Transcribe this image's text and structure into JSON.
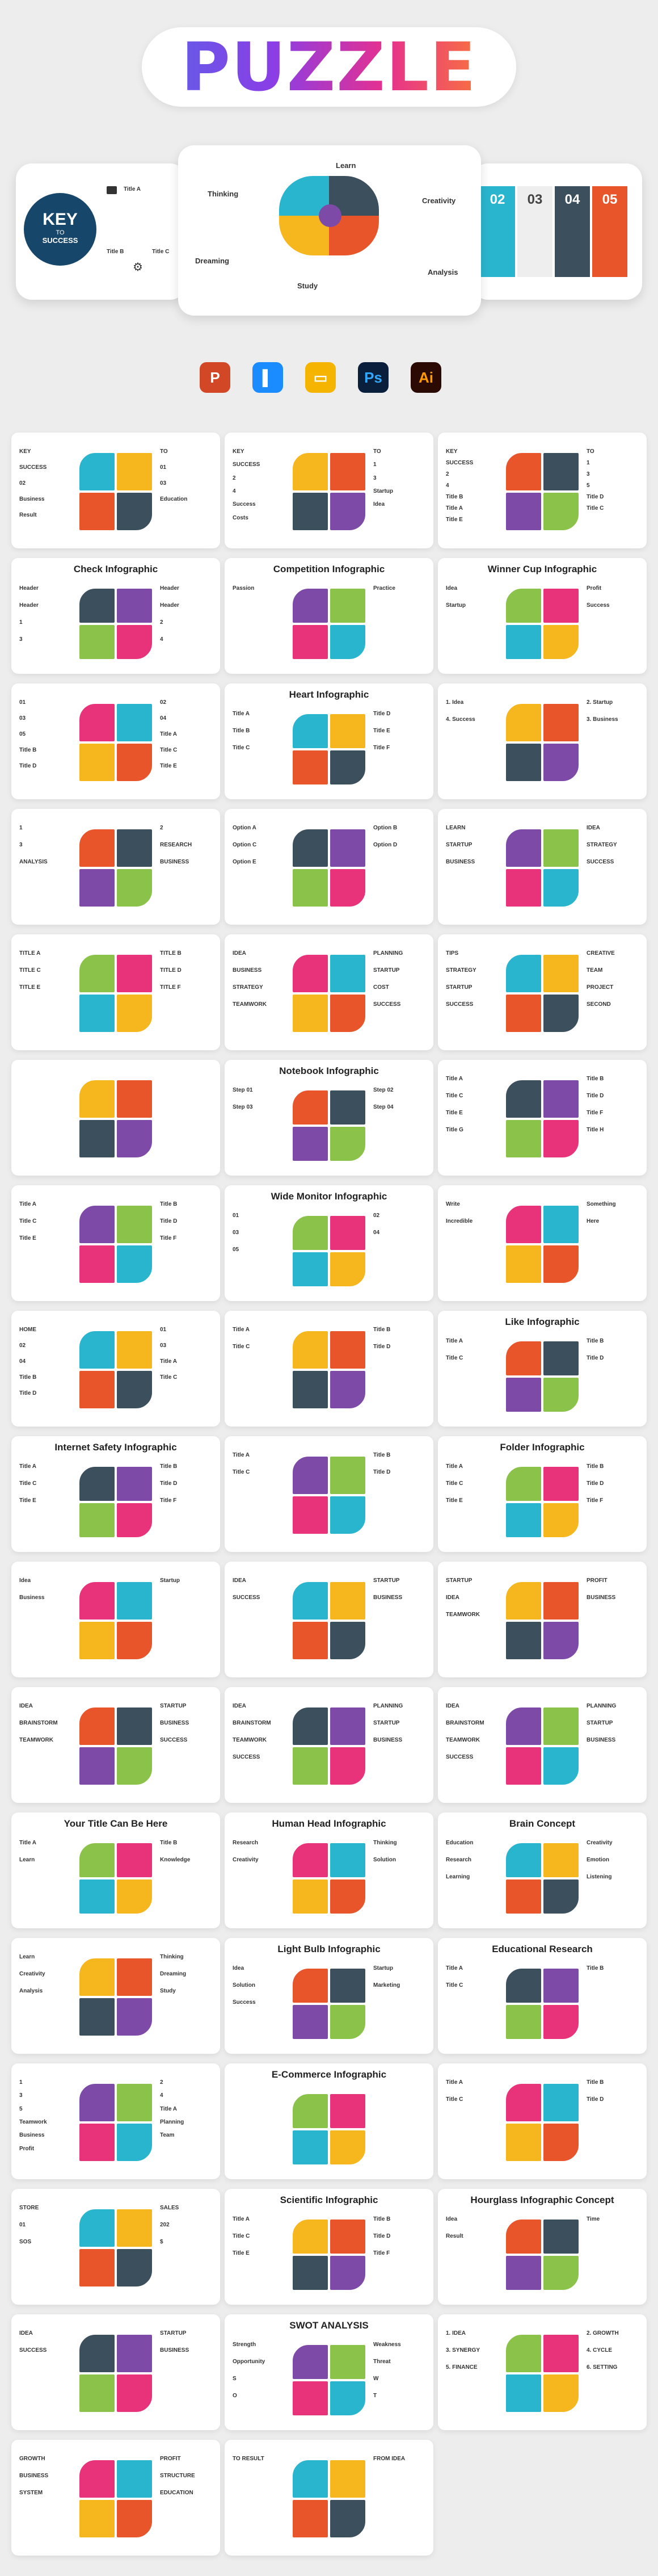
{
  "header": {
    "title": "PUZZLE"
  },
  "hero": {
    "left": {
      "key": "KEY",
      "to": "TO",
      "success": "SUCCESS",
      "labels": [
        "Title A",
        "Title B",
        "Title C"
      ]
    },
    "center": {
      "labels": [
        "Learn",
        "Thinking",
        "Creativity",
        "Dreaming",
        "Analysis",
        "Study"
      ]
    },
    "right": {
      "numbers": [
        "02",
        "03",
        "04",
        "05"
      ]
    }
  },
  "apps": [
    {
      "name": "powerpoint-icon",
      "letter": "P",
      "color": "#d24726"
    },
    {
      "name": "keynote-icon",
      "letter": "▌",
      "color": "#1a8cff"
    },
    {
      "name": "google-slides-icon",
      "letter": "▭",
      "color": "#f4b400"
    },
    {
      "name": "photoshop-icon",
      "letter": "Ps",
      "color": "#0a1f3c"
    },
    {
      "name": "illustrator-icon",
      "letter": "Ai",
      "color": "#2b0a03"
    }
  ],
  "cards": [
    {
      "title": "",
      "labels": [
        "KEY",
        "TO",
        "SUCCESS",
        "01",
        "02",
        "03",
        "Business",
        "Education",
        "Result"
      ]
    },
    {
      "title": "",
      "labels": [
        "KEY",
        "TO",
        "SUCCESS",
        "1",
        "2",
        "3",
        "4",
        "Startup",
        "Success",
        "Idea",
        "Costs"
      ]
    },
    {
      "title": "",
      "labels": [
        "KEY",
        "TO",
        "SUCCESS",
        "1",
        "2",
        "3",
        "4",
        "5",
        "Title B",
        "Title D",
        "Title A",
        "Title C",
        "Title E"
      ]
    },
    {
      "title": "Check Infographic",
      "labels": [
        "Header",
        "Header",
        "Header",
        "Header",
        "1",
        "2",
        "3",
        "4"
      ]
    },
    {
      "title": "Competition Infographic",
      "labels": [
        "Passion",
        "Practice"
      ]
    },
    {
      "title": "Winner Cup Infographic",
      "labels": [
        "Idea",
        "Profit",
        "Startup",
        "Success"
      ]
    },
    {
      "title": "",
      "labels": [
        "01",
        "02",
        "03",
        "04",
        "05",
        "Title A",
        "Title B",
        "Title C",
        "Title D",
        "Title E"
      ]
    },
    {
      "title": "Heart Infographic",
      "labels": [
        "Title A",
        "Title D",
        "Title B",
        "Title E",
        "Title C",
        "Title F"
      ]
    },
    {
      "title": "",
      "labels": [
        "1. Idea",
        "2. Startup",
        "4. Success",
        "3. Business"
      ]
    },
    {
      "title": "",
      "labels": [
        "1",
        "2",
        "3",
        "RESEARCH",
        "ANALYSIS",
        "BUSINESS"
      ]
    },
    {
      "title": "",
      "labels": [
        "Option A",
        "Option B",
        "Option C",
        "Option D",
        "Option E"
      ]
    },
    {
      "title": "",
      "labels": [
        "LEARN",
        "IDEA",
        "STARTUP",
        "STRATEGY",
        "BUSINESS",
        "SUCCESS"
      ]
    },
    {
      "title": "",
      "labels": [
        "TITLE A",
        "TITLE B",
        "TITLE C",
        "TITLE D",
        "TITLE E",
        "TITLE F"
      ]
    },
    {
      "title": "",
      "labels": [
        "IDEA",
        "PLANNING",
        "BUSINESS",
        "STARTUP",
        "STRATEGY",
        "COST",
        "TEAMWORK",
        "SUCCESS"
      ]
    },
    {
      "title": "",
      "labels": [
        "TIPS",
        "CREATIVE",
        "STRATEGY",
        "TEAM",
        "STARTUP",
        "PROJECT",
        "SUCCESS",
        "SECOND"
      ]
    },
    {
      "title": "",
      "labels": []
    },
    {
      "title": "Notebook Infographic",
      "labels": [
        "Step 01",
        "Step 02",
        "Step 03",
        "Step 04"
      ]
    },
    {
      "title": "",
      "labels": [
        "Title A",
        "Title B",
        "Title C",
        "Title D",
        "Title E",
        "Title F",
        "Title G",
        "Title H"
      ]
    },
    {
      "title": "",
      "labels": [
        "Title A",
        "Title B",
        "Title C",
        "Title D",
        "Title E",
        "Title F"
      ]
    },
    {
      "title": "Wide Monitor Infographic",
      "labels": [
        "01",
        "02",
        "03",
        "04",
        "05"
      ]
    },
    {
      "title": "",
      "labels": [
        "Write",
        "Something",
        "Incredible",
        "Here"
      ]
    },
    {
      "title": "",
      "labels": [
        "HOME",
        "01",
        "02",
        "03",
        "04",
        "Title A",
        "Title B",
        "Title C",
        "Title D"
      ]
    },
    {
      "title": "",
      "labels": [
        "Title A",
        "Title B",
        "Title C",
        "Title D"
      ]
    },
    {
      "title": "Like Infographic",
      "labels": [
        "Title A",
        "Title B",
        "Title C",
        "Title D"
      ]
    },
    {
      "title": "Internet Safety Infographic",
      "labels": [
        "Title A",
        "Title B",
        "Title C",
        "Title D",
        "Title E",
        "Title F"
      ]
    },
    {
      "title": "",
      "labels": [
        "Title A",
        "Title B",
        "Title C",
        "Title D"
      ]
    },
    {
      "title": "Folder Infographic",
      "labels": [
        "Title A",
        "Title B",
        "Title C",
        "Title D",
        "Title E",
        "Title F"
      ]
    },
    {
      "title": "",
      "labels": [
        "Idea",
        "Startup",
        "Business"
      ]
    },
    {
      "title": "",
      "labels": [
        "IDEA",
        "STARTUP",
        "SUCCESS",
        "BUSINESS"
      ]
    },
    {
      "title": "",
      "labels": [
        "STARTUP",
        "PROFIT",
        "IDEA",
        "BUSINESS",
        "TEAMWORK"
      ]
    },
    {
      "title": "",
      "labels": [
        "IDEA",
        "STARTUP",
        "BRAINSTORM",
        "BUSINESS",
        "TEAMWORK",
        "SUCCESS"
      ]
    },
    {
      "title": "",
      "labels": [
        "IDEA",
        "PLANNING",
        "BRAINSTORM",
        "STARTUP",
        "TEAMWORK",
        "BUSINESS",
        "SUCCESS"
      ]
    },
    {
      "title": "",
      "labels": [
        "IDEA",
        "PLANNING",
        "BRAINSTORM",
        "STARTUP",
        "TEAMWORK",
        "BUSINESS",
        "SUCCESS"
      ]
    },
    {
      "title": "Your Title Can Be Here",
      "labels": [
        "Title A",
        "Title B",
        "Learn",
        "Knowledge"
      ]
    },
    {
      "title": "Human Head Infographic",
      "labels": [
        "Research",
        "Thinking",
        "Creativity",
        "Solution"
      ]
    },
    {
      "title": "Brain Concept",
      "labels": [
        "Education",
        "Creativity",
        "Research",
        "Emotion",
        "Learning",
        "Listening"
      ]
    },
    {
      "title": "",
      "labels": [
        "Learn",
        "Thinking",
        "Creativity",
        "Dreaming",
        "Analysis",
        "Study"
      ]
    },
    {
      "title": "Light Bulb Infographic",
      "labels": [
        "Idea",
        "Startup",
        "Solution",
        "Marketing",
        "Success"
      ]
    },
    {
      "title": "Educational Research",
      "labels": [
        "Title A",
        "Title B",
        "Title C"
      ]
    },
    {
      "title": "",
      "labels": [
        "1",
        "2",
        "3",
        "4",
        "5",
        "Title A",
        "Teamwork",
        "Planning",
        "Business",
        "Team",
        "Profit"
      ]
    },
    {
      "title": "E-Commerce Infographic",
      "labels": []
    },
    {
      "title": "",
      "labels": [
        "Title A",
        "Title B",
        "Title C",
        "Title D"
      ]
    },
    {
      "title": "",
      "labels": [
        "STORE",
        "SALES",
        "01",
        "202",
        "SOS",
        "$"
      ]
    },
    {
      "title": "Scientific Infographic",
      "labels": [
        "Title A",
        "Title B",
        "Title C",
        "Title D",
        "Title E",
        "Title F"
      ]
    },
    {
      "title": "Hourglass Infographic Concept",
      "labels": [
        "Idea",
        "Time",
        "Result"
      ]
    },
    {
      "title": "",
      "labels": [
        "IDEA",
        "STARTUP",
        "SUCCESS",
        "BUSINESS"
      ]
    },
    {
      "title": "SWOT ANALYSIS",
      "labels": [
        "Strength",
        "Weakness",
        "Opportunity",
        "Threat",
        "S",
        "W",
        "O",
        "T"
      ]
    },
    {
      "title": "",
      "labels": [
        "1. IDEA",
        "2. GROWTH",
        "3. SYNERGY",
        "4. CYCLE",
        "5. FINANCE",
        "6. SETTING"
      ]
    },
    {
      "title": "",
      "labels": [
        "GROWTH",
        "PROFIT",
        "BUSINESS",
        "STRUCTURE",
        "SYSTEM",
        "EDUCATION"
      ]
    },
    {
      "title": "",
      "labels": [
        "TO RESULT",
        "FROM IDEA"
      ]
    }
  ]
}
